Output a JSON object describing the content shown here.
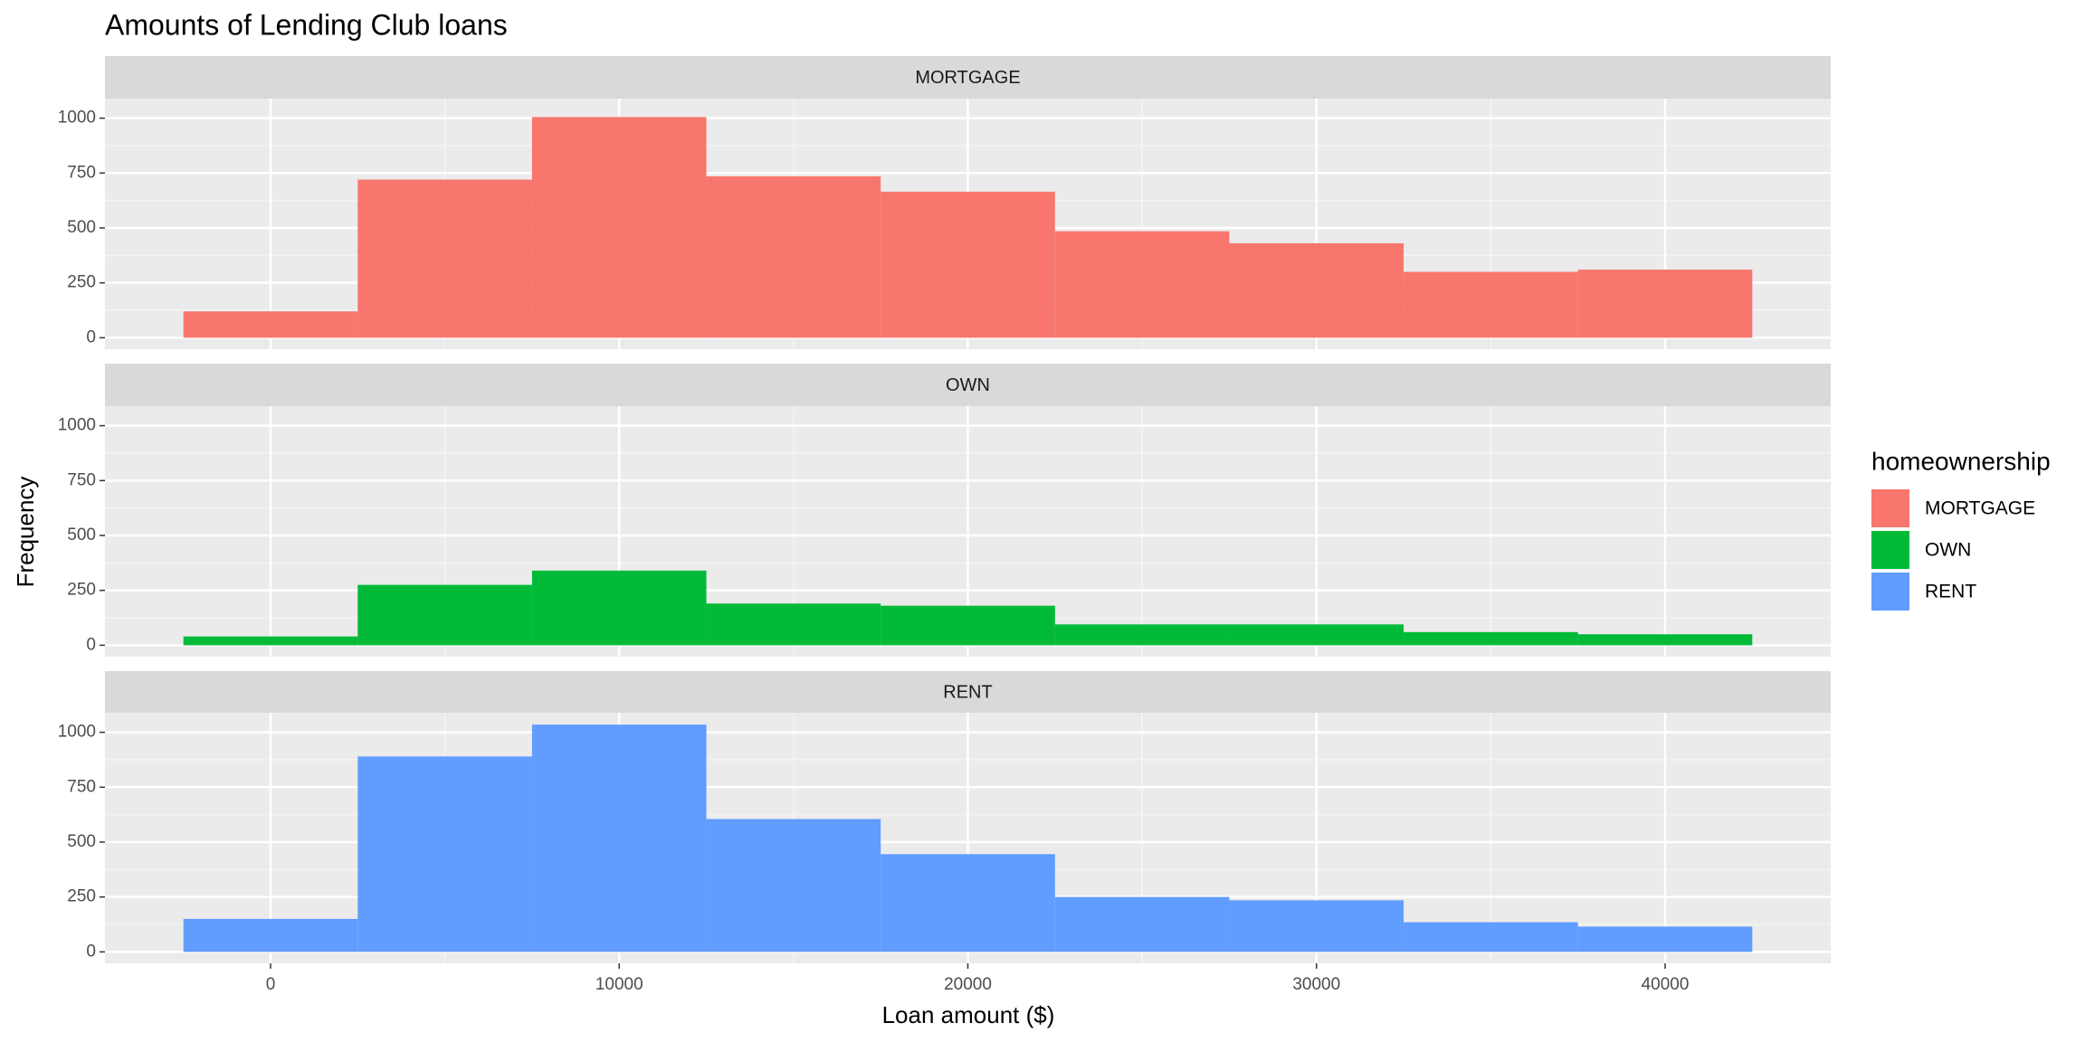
{
  "chart_data": {
    "type": "histogram",
    "title": "Amounts of Lending Club loans",
    "xlabel": "Loan amount ($)",
    "ylabel": "Frequency",
    "legend_title": "homeownership",
    "bins": [
      -2500,
      2500,
      7500,
      12500,
      17500,
      22500,
      27500,
      32500,
      37500,
      42500
    ],
    "series": [
      {
        "name": "MORTGAGE",
        "color": "#F8766D",
        "values": [
          120,
          720,
          1005,
          735,
          665,
          485,
          430,
          300,
          310
        ]
      },
      {
        "name": "OWN",
        "color": "#00BA38",
        "values": [
          40,
          275,
          340,
          190,
          180,
          95,
          95,
          60,
          50
        ]
      },
      {
        "name": "RENT",
        "color": "#619CFF",
        "values": [
          150,
          890,
          1035,
          605,
          445,
          250,
          235,
          135,
          115
        ]
      }
    ],
    "xlim": [
      -4750,
      44750
    ],
    "xticks": [
      0,
      10000,
      20000,
      30000,
      40000
    ],
    "ylim": [
      -52,
      1089
    ],
    "yticks": [
      0,
      250,
      500,
      750,
      1000
    ],
    "grid": true
  }
}
